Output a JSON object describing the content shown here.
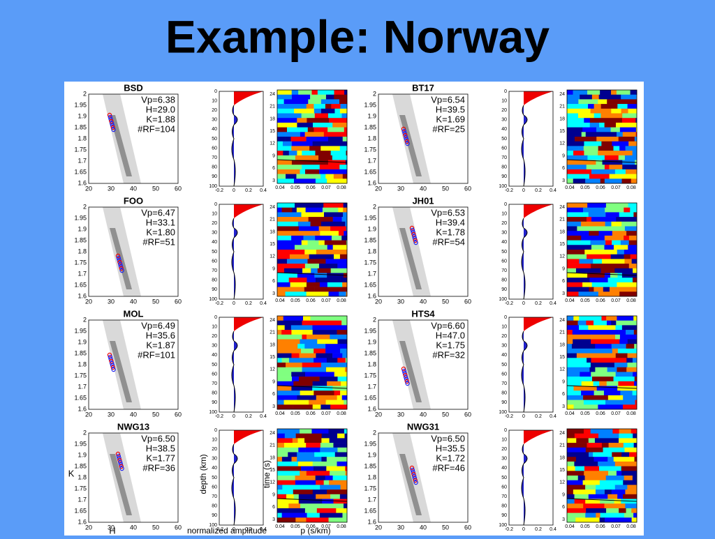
{
  "title": "Example: Norway",
  "stations": [
    {
      "name": "BSD",
      "params": [
        "Vp=6.38",
        "H=29.0",
        "K=1.88",
        "#RF=104"
      ]
    },
    {
      "name": "BT17",
      "params": [
        "Vp=6.54",
        "H=39.5",
        "K=1.69",
        "#RF=25"
      ]
    },
    {
      "name": "FOO",
      "params": [
        "Vp=6.47",
        "H=33.1",
        "K=1.80",
        "#RF=51"
      ]
    },
    {
      "name": "JH01",
      "params": [
        "Vp=6.53",
        "H=39.4",
        "K=1.78",
        "#RF=54"
      ]
    },
    {
      "name": "MOL",
      "params": [
        "Vp=6.49",
        "H=35.6",
        "K=1.87",
        "#RF=101"
      ]
    },
    {
      "name": "HTS4",
      "params": [
        "Vp=6.60",
        "H=47.0",
        "K=1.75",
        "#RF=32"
      ]
    },
    {
      "name": "NWG13",
      "params": [
        "Vp=6.50",
        "H=38.5",
        "K=1.77",
        "#RF=36"
      ]
    },
    {
      "name": "NWG31",
      "params": [
        "Vp=6.50",
        "H=35.5",
        "K=1.72",
        "#RF=46"
      ]
    }
  ],
  "axes": {
    "hk": {
      "xticks": [
        20,
        30,
        40,
        50,
        60
      ],
      "yticks": [
        "2",
        "1.95",
        "1.9",
        "1.85",
        "1.8",
        "1.75",
        "1.7",
        "1.65",
        "1.6"
      ],
      "xlabel": "H",
      "ylabel": "K"
    },
    "depth": {
      "xticks": [
        "-0.2",
        "0",
        "0.2",
        "0.4"
      ],
      "yticks": [
        0,
        10,
        20,
        30,
        40,
        50,
        60,
        70,
        80,
        90,
        100
      ],
      "xlabel": "normalized amplitude",
      "ylabel": "depth (km)"
    },
    "time": {
      "xticks": [
        "0.04",
        "0.05",
        "0.06",
        "0.07",
        "0.08"
      ],
      "yticks": [
        24,
        21,
        18,
        15,
        12,
        9,
        6,
        3
      ],
      "xlabel": "p (s/km)",
      "ylabel": "time (s)"
    }
  }
}
